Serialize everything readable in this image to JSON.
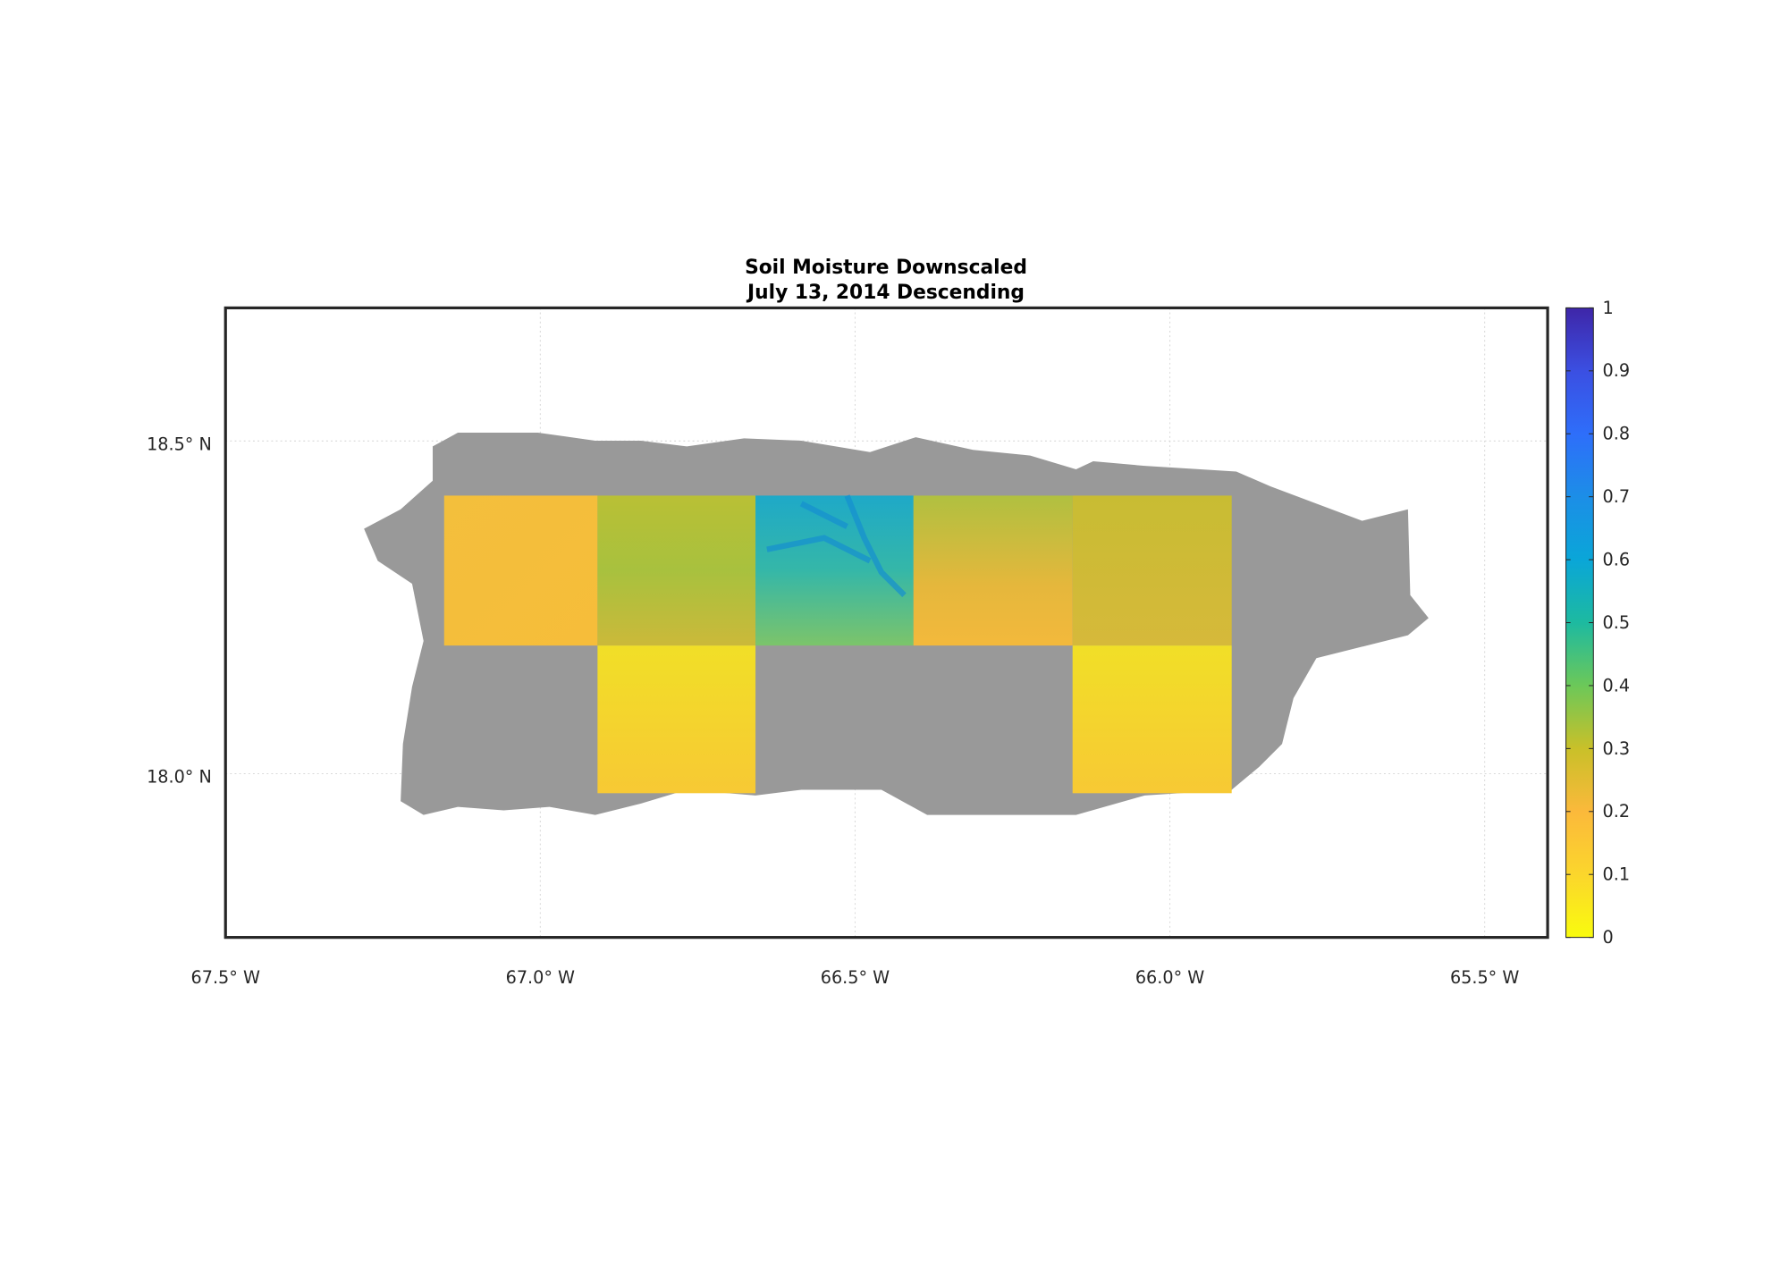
{
  "chart_data": {
    "type": "map",
    "title": [
      "Soil Moisture Downscaled",
      "July 13, 2014 Descending"
    ],
    "xlim": [
      -67.5,
      -65.4
    ],
    "ylim": [
      17.754,
      18.7
    ],
    "xticks": [
      {
        "value": -67.5,
        "label": "67.5° W"
      },
      {
        "value": -67.0,
        "label": "67.0° W"
      },
      {
        "value": -66.5,
        "label": "66.5° W"
      },
      {
        "value": -66.0,
        "label": "66.0° W"
      },
      {
        "value": -65.5,
        "label": "65.5° W"
      }
    ],
    "yticks": [
      {
        "value": 18.0,
        "label": "18.0° N"
      },
      {
        "value": 18.5,
        "label": "18.5° N"
      }
    ],
    "grid": true,
    "clim": [
      0,
      1
    ],
    "cticks": [
      0,
      0.1,
      0.2,
      0.3,
      0.4,
      0.5,
      0.6,
      0.7,
      0.8,
      0.9,
      1
    ]
  }
}
